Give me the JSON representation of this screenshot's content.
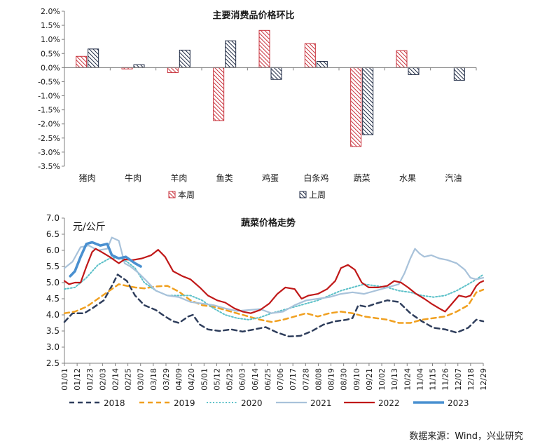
{
  "chart_data": [
    {
      "type": "bar",
      "title": "主要消费品价格环比",
      "categories": [
        "猪肉",
        "牛肉",
        "羊肉",
        "鱼类",
        "鸡蛋",
        "白条鸡",
        "蔬菜",
        "水果",
        "汽油"
      ],
      "series": [
        {
          "name": "本周",
          "values": [
            0.4,
            -0.05,
            -0.18,
            -1.88,
            1.32,
            0.85,
            -2.8,
            0.6,
            0.0
          ],
          "color": "#c8323c",
          "pattern": "hatch-red"
        },
        {
          "name": "上周",
          "values": [
            0.66,
            0.1,
            0.62,
            0.95,
            -0.42,
            0.22,
            -2.38,
            -0.25,
            -0.45
          ],
          "color": "#1f2a44",
          "pattern": "hatch-navy"
        }
      ],
      "ylim": [
        -3.5,
        2.0
      ],
      "yticks": [
        "2.0%",
        "1.5%",
        "1.0%",
        "0.5%",
        "0.0%",
        "-0.5%",
        "-1.0%",
        "-1.5%",
        "-2.0%",
        "-2.5%",
        "-3.0%",
        "-3.5%"
      ],
      "legend_position": "bottom",
      "grid": false
    },
    {
      "type": "line",
      "title": "蔬菜价格走势",
      "ylabel": "元/公斤",
      "ylim": [
        2.5,
        7.0
      ],
      "yticks": [
        "7.0",
        "6.5",
        "6.0",
        "5.5",
        "5.0",
        "4.5",
        "4.0",
        "3.5",
        "3.0",
        "2.5"
      ],
      "x_labels": [
        "01/01",
        "01/12",
        "01/23",
        "02/03",
        "02/14",
        "02/25",
        "03/07",
        "03/18",
        "03/29",
        "04/09",
        "04/20",
        "05/01",
        "05/12",
        "05/23",
        "06/03",
        "06/14",
        "06/25",
        "07/06",
        "07/17",
        "07/28",
        "08/08",
        "08/19",
        "08/30",
        "09/10",
        "09/21",
        "10/02",
        "10/13",
        "10/24",
        "11/04",
        "11/15",
        "11/26",
        "12/07",
        "12/18",
        "12/29"
      ],
      "x_day_start": 1,
      "x_day_end": 363,
      "legend_position": "bottom",
      "grid": false,
      "series": [
        {
          "name": "2018",
          "color": "#2f3e5c",
          "style": "dash",
          "points": [
            [
              1,
              3.78
            ],
            [
              8,
              4.05
            ],
            [
              18,
              4.05
            ],
            [
              25,
              4.2
            ],
            [
              35,
              4.45
            ],
            [
              42,
              4.9
            ],
            [
              47,
              5.25
            ],
            [
              55,
              5.05
            ],
            [
              62,
              4.6
            ],
            [
              70,
              4.3
            ],
            [
              80,
              4.15
            ],
            [
              88,
              3.95
            ],
            [
              95,
              3.8
            ],
            [
              100,
              3.75
            ],
            [
              108,
              3.95
            ],
            [
              112,
              4.0
            ],
            [
              118,
              3.7
            ],
            [
              125,
              3.55
            ],
            [
              135,
              3.5
            ],
            [
              145,
              3.55
            ],
            [
              155,
              3.48
            ],
            [
              165,
              3.55
            ],
            [
              175,
              3.62
            ],
            [
              185,
              3.45
            ],
            [
              195,
              3.33
            ],
            [
              205,
              3.35
            ],
            [
              215,
              3.5
            ],
            [
              225,
              3.7
            ],
            [
              235,
              3.8
            ],
            [
              245,
              3.85
            ],
            [
              250,
              3.9
            ],
            [
              255,
              4.3
            ],
            [
              262,
              4.25
            ],
            [
              270,
              4.35
            ],
            [
              280,
              4.45
            ],
            [
              290,
              4.4
            ],
            [
              300,
              4.05
            ],
            [
              310,
              3.8
            ],
            [
              320,
              3.6
            ],
            [
              330,
              3.55
            ],
            [
              340,
              3.45
            ],
            [
              350,
              3.6
            ],
            [
              357,
              3.85
            ],
            [
              363,
              3.8
            ]
          ]
        },
        {
          "name": "2019",
          "color": "#f0a020",
          "style": "dash",
          "points": [
            [
              1,
              4.05
            ],
            [
              10,
              4.1
            ],
            [
              20,
              4.25
            ],
            [
              30,
              4.5
            ],
            [
              40,
              4.75
            ],
            [
              48,
              4.95
            ],
            [
              55,
              4.9
            ],
            [
              62,
              4.85
            ],
            [
              70,
              4.82
            ],
            [
              80,
              4.88
            ],
            [
              90,
              4.9
            ],
            [
              100,
              4.72
            ],
            [
              110,
              4.45
            ],
            [
              120,
              4.3
            ],
            [
              130,
              4.25
            ],
            [
              140,
              4.15
            ],
            [
              150,
              4.05
            ],
            [
              160,
              3.95
            ],
            [
              170,
              3.85
            ],
            [
              180,
              3.78
            ],
            [
              190,
              3.85
            ],
            [
              200,
              3.95
            ],
            [
              210,
              4.05
            ],
            [
              220,
              3.95
            ],
            [
              230,
              4.05
            ],
            [
              240,
              4.1
            ],
            [
              250,
              4.05
            ],
            [
              260,
              3.95
            ],
            [
              270,
              3.9
            ],
            [
              280,
              3.85
            ],
            [
              290,
              3.75
            ],
            [
              300,
              3.75
            ],
            [
              310,
              3.85
            ],
            [
              320,
              3.9
            ],
            [
              330,
              3.95
            ],
            [
              340,
              4.1
            ],
            [
              350,
              4.3
            ],
            [
              357,
              4.7
            ],
            [
              363,
              4.78
            ]
          ]
        },
        {
          "name": "2020",
          "color": "#5bc0c8",
          "style": "dot",
          "points": [
            [
              1,
              4.8
            ],
            [
              10,
              4.85
            ],
            [
              20,
              5.15
            ],
            [
              30,
              5.55
            ],
            [
              40,
              5.75
            ],
            [
              48,
              5.78
            ],
            [
              55,
              5.65
            ],
            [
              62,
              5.45
            ],
            [
              70,
              5.0
            ],
            [
              80,
              4.75
            ],
            [
              90,
              4.6
            ],
            [
              100,
              4.6
            ],
            [
              110,
              4.6
            ],
            [
              120,
              4.45
            ],
            [
              130,
              4.2
            ],
            [
              140,
              4.0
            ],
            [
              150,
              3.9
            ],
            [
              160,
              3.85
            ],
            [
              170,
              3.92
            ],
            [
              180,
              4.05
            ],
            [
              190,
              4.15
            ],
            [
              200,
              4.25
            ],
            [
              210,
              4.35
            ],
            [
              220,
              4.45
            ],
            [
              230,
              4.6
            ],
            [
              240,
              4.75
            ],
            [
              250,
              4.85
            ],
            [
              260,
              4.95
            ],
            [
              270,
              4.9
            ],
            [
              280,
              4.85
            ],
            [
              290,
              4.75
            ],
            [
              300,
              4.7
            ],
            [
              310,
              4.6
            ],
            [
              320,
              4.55
            ],
            [
              330,
              4.6
            ],
            [
              340,
              4.75
            ],
            [
              350,
              4.95
            ],
            [
              357,
              5.1
            ],
            [
              363,
              5.25
            ]
          ]
        },
        {
          "name": "2021",
          "color": "#a8c2da",
          "style": "solid",
          "points": [
            [
              1,
              5.45
            ],
            [
              8,
              5.65
            ],
            [
              15,
              6.1
            ],
            [
              22,
              6.15
            ],
            [
              30,
              6.0
            ],
            [
              38,
              6.05
            ],
            [
              42,
              6.4
            ],
            [
              48,
              6.3
            ],
            [
              53,
              5.6
            ],
            [
              58,
              5.5
            ],
            [
              65,
              5.3
            ],
            [
              72,
              5.05
            ],
            [
              80,
              4.75
            ],
            [
              90,
              4.6
            ],
            [
              100,
              4.55
            ],
            [
              110,
              4.4
            ],
            [
              120,
              4.35
            ],
            [
              130,
              4.3
            ],
            [
              140,
              4.2
            ],
            [
              150,
              4.12
            ],
            [
              160,
              4.15
            ],
            [
              170,
              4.18
            ],
            [
              180,
              4.05
            ],
            [
              190,
              4.1
            ],
            [
              200,
              4.3
            ],
            [
              210,
              4.45
            ],
            [
              220,
              4.5
            ],
            [
              230,
              4.55
            ],
            [
              240,
              4.65
            ],
            [
              250,
              4.7
            ],
            [
              260,
              4.65
            ],
            [
              270,
              4.75
            ],
            [
              280,
              4.85
            ],
            [
              290,
              4.95
            ],
            [
              295,
              5.3
            ],
            [
              300,
              5.75
            ],
            [
              304,
              6.05
            ],
            [
              308,
              5.9
            ],
            [
              312,
              5.8
            ],
            [
              318,
              5.85
            ],
            [
              325,
              5.75
            ],
            [
              332,
              5.7
            ],
            [
              340,
              5.6
            ],
            [
              347,
              5.4
            ],
            [
              352,
              5.15
            ],
            [
              357,
              5.1
            ],
            [
              363,
              5.15
            ]
          ]
        },
        {
          "name": "2022",
          "color": "#c01818",
          "style": "solid",
          "points": [
            [
              1,
              5.05
            ],
            [
              5,
              4.95
            ],
            [
              10,
              5.0
            ],
            [
              15,
              5.0
            ],
            [
              20,
              5.5
            ],
            [
              25,
              5.95
            ],
            [
              28,
              6.05
            ],
            [
              33,
              5.95
            ],
            [
              40,
              5.8
            ],
            [
              48,
              5.6
            ],
            [
              53,
              5.72
            ],
            [
              60,
              5.7
            ],
            [
              68,
              5.75
            ],
            [
              76,
              5.85
            ],
            [
              82,
              6.02
            ],
            [
              88,
              5.8
            ],
            [
              95,
              5.35
            ],
            [
              103,
              5.2
            ],
            [
              110,
              5.1
            ],
            [
              118,
              4.85
            ],
            [
              125,
              4.6
            ],
            [
              133,
              4.45
            ],
            [
              140,
              4.38
            ],
            [
              148,
              4.2
            ],
            [
              155,
              4.1
            ],
            [
              162,
              4.05
            ],
            [
              170,
              4.15
            ],
            [
              178,
              4.35
            ],
            [
              185,
              4.65
            ],
            [
              192,
              4.85
            ],
            [
              200,
              4.8
            ],
            [
              206,
              4.5
            ],
            [
              212,
              4.6
            ],
            [
              220,
              4.65
            ],
            [
              228,
              4.8
            ],
            [
              235,
              5.05
            ],
            [
              240,
              5.45
            ],
            [
              246,
              5.55
            ],
            [
              252,
              5.4
            ],
            [
              258,
              5.0
            ],
            [
              264,
              4.85
            ],
            [
              272,
              4.85
            ],
            [
              280,
              4.9
            ],
            [
              286,
              5.05
            ],
            [
              292,
              5.0
            ],
            [
              298,
              4.85
            ],
            [
              305,
              4.65
            ],
            [
              312,
              4.5
            ],
            [
              318,
              4.35
            ],
            [
              325,
              4.2
            ],
            [
              330,
              4.1
            ],
            [
              336,
              4.35
            ],
            [
              342,
              4.6
            ],
            [
              348,
              4.55
            ],
            [
              352,
              4.6
            ],
            [
              357,
              4.9
            ],
            [
              360,
              5.0
            ],
            [
              363,
              5.05
            ]
          ]
        },
        {
          "name": "2023",
          "color": "#4a90d0",
          "style": "solid-thick",
          "points": [
            [
              6,
              5.2
            ],
            [
              10,
              5.35
            ],
            [
              15,
              5.8
            ],
            [
              20,
              6.2
            ],
            [
              25,
              6.25
            ],
            [
              32,
              6.15
            ],
            [
              38,
              6.2
            ],
            [
              42,
              5.85
            ],
            [
              48,
              5.75
            ],
            [
              54,
              5.8
            ],
            [
              58,
              5.7
            ],
            [
              62,
              5.6
            ],
            [
              67,
              5.5
            ]
          ]
        }
      ]
    }
  ],
  "source_text": "数据来源：Wind，兴业研究"
}
